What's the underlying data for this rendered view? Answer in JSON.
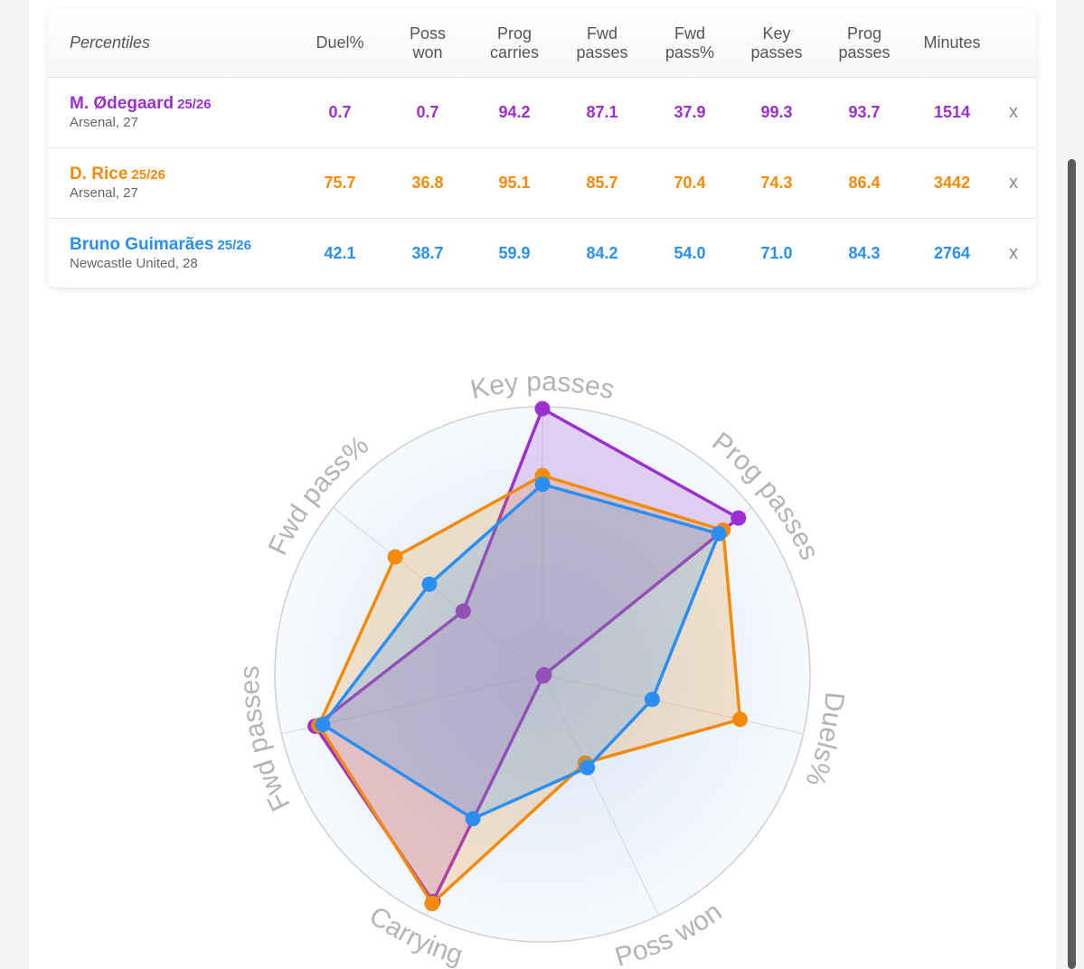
{
  "table": {
    "header_label": "Percentiles",
    "columns": [
      "Duel%",
      "Poss\nwon",
      "Prog\ncarries",
      "Fwd\npasses",
      "Fwd\npass%",
      "Key\npasses",
      "Prog\npasses",
      "Minutes"
    ],
    "remove_label": "x",
    "rows": [
      {
        "name": "M. Ødegaard",
        "season": "25/26",
        "info": "Arsenal, 27",
        "color": "#9b30d0",
        "values": [
          "0.7",
          "0.7",
          "94.2",
          "87.1",
          "37.9",
          "99.3",
          "93.7",
          "1514"
        ]
      },
      {
        "name": "D. Rice",
        "season": "25/26",
        "info": "Arsenal, 27",
        "color": "#f28a0c",
        "values": [
          "75.7",
          "36.8",
          "95.1",
          "85.7",
          "70.4",
          "74.3",
          "86.4",
          "3442"
        ]
      },
      {
        "name": "Bruno Guimarães",
        "season": "25/26",
        "info": "Newcastle United, 28",
        "color": "#2a8ff0",
        "values": [
          "42.1",
          "38.7",
          "59.9",
          "84.2",
          "54.0",
          "71.0",
          "84.3",
          "2764"
        ]
      }
    ]
  },
  "chart_data": {
    "type": "radar",
    "axes": [
      "Key passes",
      "Prog passes",
      "Duels%",
      "Poss won",
      "Carrying",
      "Fwd passes",
      "Fwd pass%"
    ],
    "range": [
      0,
      100
    ],
    "series": [
      {
        "name": "M. Ødegaard",
        "color": "#9b30d0",
        "values": [
          99.3,
          93.7,
          0.7,
          0.7,
          94.2,
          87.1,
          37.9
        ]
      },
      {
        "name": "D. Rice",
        "color": "#f28a0c",
        "values": [
          74.3,
          86.4,
          75.7,
          36.8,
          95.1,
          85.7,
          70.4
        ]
      },
      {
        "name": "Bruno Guimarães",
        "color": "#2a8ff0",
        "values": [
          71.0,
          84.3,
          42.1,
          38.7,
          59.9,
          84.2,
          54.0
        ]
      }
    ]
  }
}
